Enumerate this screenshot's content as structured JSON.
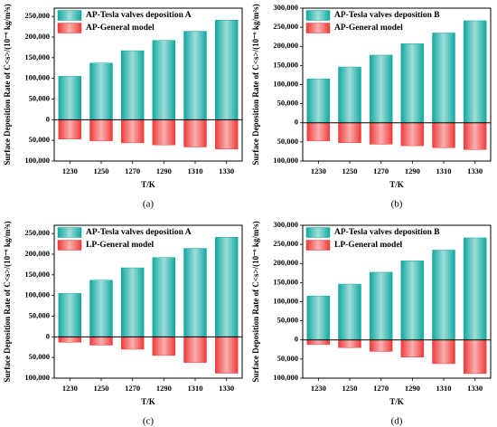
{
  "chart_data": [
    {
      "type": "bar",
      "caption": "(a)",
      "xlabel": "T/K",
      "ylabel": "Surface Deposition Rate of C<s>/(10⁻⁶ kg/m²s)",
      "categories": [
        "1230",
        "1250",
        "1270",
        "1290",
        "1310",
        "1330"
      ],
      "series": [
        {
          "name": "AP-Tesla valves deposition A",
          "color": "#12a9a1",
          "values": [
            105000,
            137000,
            167000,
            192000,
            214000,
            241000
          ]
        },
        {
          "name": "AP-General model",
          "color": "#f03a3a",
          "values": [
            -47000,
            -51000,
            -56000,
            -61000,
            -66000,
            -71000
          ]
        }
      ],
      "ylim": [
        -100000,
        270000
      ],
      "yticks": [
        {
          "value": -100000,
          "label": "100,000"
        },
        {
          "value": -50000,
          "label": "50,000"
        },
        0,
        {
          "value": 50000,
          "label": "50,000"
        },
        {
          "value": 100000,
          "label": "100,000"
        },
        {
          "value": 150000,
          "label": "150,000"
        },
        {
          "value": 200000,
          "label": "200,000"
        },
        {
          "value": 250000,
          "label": "250,000"
        }
      ]
    },
    {
      "type": "bar",
      "caption": "(b)",
      "xlabel": "T/K",
      "ylabel": "Surface Deposition Rate of C<s>/(10⁻⁶ kg/m²s)",
      "categories": [
        "1230",
        "1250",
        "1270",
        "1290",
        "1310",
        "1330"
      ],
      "series": [
        {
          "name": "AP-Tesla valves deposition B",
          "color": "#12a9a1",
          "values": [
            115000,
            146000,
            177000,
            207000,
            235000,
            267000
          ]
        },
        {
          "name": "AP-General model",
          "color": "#f03a3a",
          "values": [
            -47000,
            -52000,
            -56000,
            -60000,
            -65000,
            -70000
          ]
        }
      ],
      "ylim": [
        -100000,
        300000
      ],
      "yticks": [
        {
          "value": -100000,
          "label": "100,000"
        },
        {
          "value": -50000,
          "label": "50,000"
        },
        0,
        {
          "value": 50000,
          "label": "50,000"
        },
        {
          "value": 100000,
          "label": "100,000"
        },
        {
          "value": 150000,
          "label": "150,000"
        },
        {
          "value": 200000,
          "label": "200,000"
        },
        {
          "value": 250000,
          "label": "250,000"
        },
        {
          "value": 300000,
          "label": "300,000"
        }
      ]
    },
    {
      "type": "bar",
      "caption": "(c)",
      "xlabel": "T/K",
      "ylabel": "Surface Deposition Rate of C<s>/(10⁻⁶ kg/m²s)",
      "categories": [
        "1230",
        "1250",
        "1270",
        "1290",
        "1310",
        "1330"
      ],
      "series": [
        {
          "name": "AP-Tesla valves deposition A",
          "color": "#12a9a1",
          "values": [
            105000,
            137000,
            167000,
            192000,
            214000,
            241000
          ]
        },
        {
          "name": "LP-General model",
          "color": "#f03a3a",
          "values": [
            -13000,
            -20000,
            -30000,
            -45000,
            -62000,
            -88000
          ]
        }
      ],
      "ylim": [
        -100000,
        270000
      ],
      "yticks": [
        {
          "value": -100000,
          "label": "100,000"
        },
        {
          "value": -50000,
          "label": "50,000"
        },
        0,
        {
          "value": 50000,
          "label": "50,000"
        },
        {
          "value": 100000,
          "label": "100,000"
        },
        {
          "value": 150000,
          "label": "150,000"
        },
        {
          "value": 200000,
          "label": "200,000"
        },
        {
          "value": 250000,
          "label": "250,000"
        }
      ]
    },
    {
      "type": "bar",
      "caption": "(d)",
      "xlabel": "T/K",
      "ylabel": "Surface Deposition Rate of C<s>/(10⁻⁶ kg/m²s)",
      "categories": [
        "1230",
        "1250",
        "1270",
        "1290",
        "1310",
        "1330"
      ],
      "series": [
        {
          "name": "AP-Tesla valves deposition B",
          "color": "#12a9a1",
          "values": [
            115000,
            146000,
            177000,
            207000,
            235000,
            267000
          ]
        },
        {
          "name": "LP-General model",
          "color": "#f03a3a",
          "values": [
            -12000,
            -20000,
            -30000,
            -45000,
            -62000,
            -88000
          ]
        }
      ],
      "ylim": [
        -100000,
        300000
      ],
      "yticks": [
        {
          "value": -100000,
          "label": "100,000"
        },
        {
          "value": -50000,
          "label": "50,000"
        },
        0,
        {
          "value": 50000,
          "label": "50,000"
        },
        {
          "value": 100000,
          "label": "100,000"
        },
        {
          "value": 150000,
          "label": "150,000"
        },
        {
          "value": 200000,
          "label": "200,000"
        },
        {
          "value": 250000,
          "label": "250,000"
        },
        {
          "value": 300000,
          "label": "300,000"
        }
      ]
    }
  ]
}
